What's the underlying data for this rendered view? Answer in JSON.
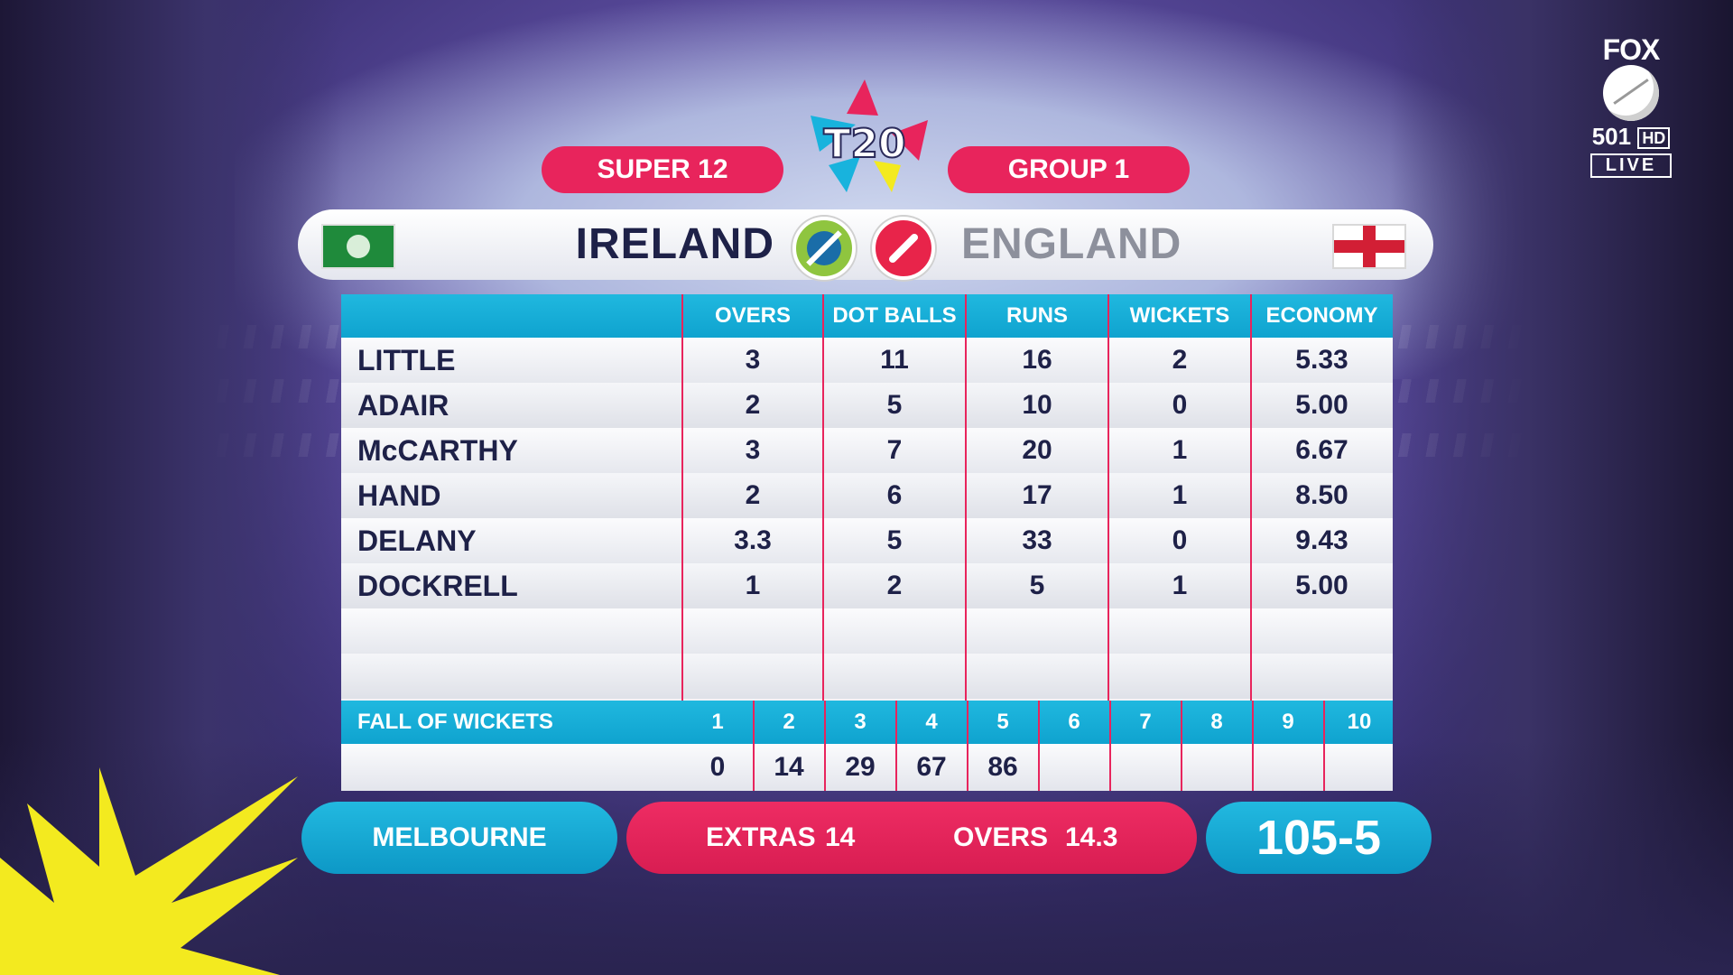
{
  "broadcaster": {
    "brand": "FOX",
    "channel": "501",
    "quality": "HD",
    "status": "LIVE"
  },
  "tournament": {
    "logo_text": "T20"
  },
  "header": {
    "stage": "SUPER 12",
    "group": "GROUP 1"
  },
  "match": {
    "batting_team": "IRELAND",
    "bowling_team": "ENGLAND"
  },
  "table": {
    "columns": [
      "OVERS",
      "DOT BALLS",
      "RUNS",
      "WICKETS",
      "ECONOMY"
    ],
    "rows": [
      {
        "name": "LITTLE",
        "overs": "3",
        "dots": "11",
        "runs": "16",
        "wickets": "2",
        "economy": "5.33"
      },
      {
        "name": "ADAIR",
        "overs": "2",
        "dots": "5",
        "runs": "10",
        "wickets": "0",
        "economy": "5.00"
      },
      {
        "name": "McCARTHY",
        "overs": "3",
        "dots": "7",
        "runs": "20",
        "wickets": "1",
        "economy": "6.67"
      },
      {
        "name": "HAND",
        "overs": "2",
        "dots": "6",
        "runs": "17",
        "wickets": "1",
        "economy": "8.50"
      },
      {
        "name": "DELANY",
        "overs": "3.3",
        "dots": "5",
        "runs": "33",
        "wickets": "0",
        "economy": "9.43"
      },
      {
        "name": "DOCKRELL",
        "overs": "1",
        "dots": "2",
        "runs": "5",
        "wickets": "1",
        "economy": "5.00"
      }
    ],
    "fall_of_wickets": {
      "label": "FALL OF WICKETS",
      "numbers": [
        "1",
        "2",
        "3",
        "4",
        "5",
        "6",
        "7",
        "8",
        "9",
        "10"
      ],
      "values": [
        "0",
        "14",
        "29",
        "67",
        "86",
        "",
        "",
        "",
        "",
        ""
      ]
    }
  },
  "footer": {
    "venue": "MELBOURNE",
    "extras_label": "EXTRAS",
    "extras_value": "14",
    "overs_label": "OVERS",
    "overs_value": "14.3",
    "score": "105-5"
  },
  "colors": {
    "pink": "#e8245c",
    "cyan": "#13abd6",
    "navy": "#1e2148"
  }
}
